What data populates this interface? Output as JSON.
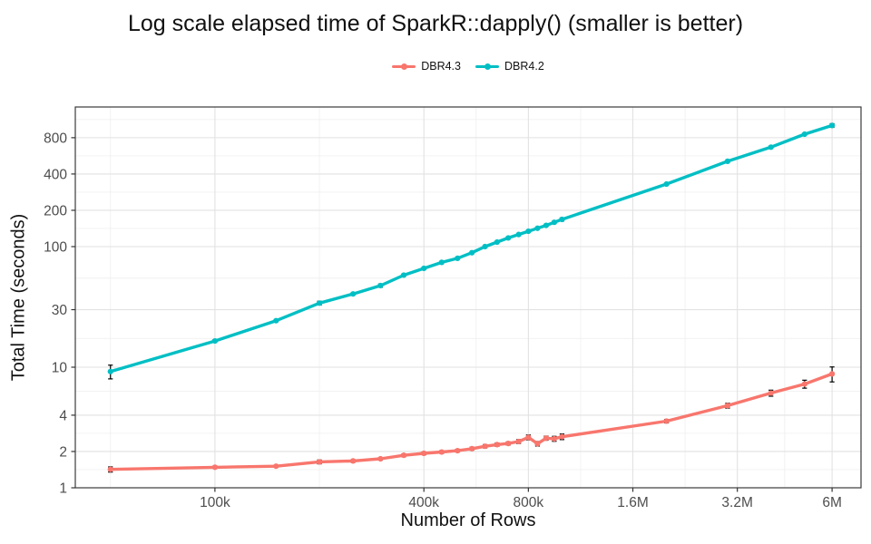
{
  "colors": {
    "series_dbr43": "#F8766D",
    "series_dbr42": "#00BFC4",
    "grid_major": "#E2E2E2",
    "grid_minor": "#F0F0F0",
    "panel_border": "#3B3B3B",
    "panel_background": "#FFFFFF",
    "tick_label": "#4D4D4D",
    "tick_mark": "#333333",
    "errorbar": "#000000"
  },
  "legend": [
    {
      "label": "DBR4.3",
      "color": "#F8766D"
    },
    {
      "label": "DBR4.2",
      "color": "#00BFC4"
    }
  ],
  "chart_data": {
    "type": "line",
    "title": "Log scale elapsed time of SparkR::dapply() (smaller is better)",
    "xlabel": "Number of Rows",
    "ylabel": "Total Time (seconds)",
    "x_scale": "log",
    "y_scale": "log",
    "grid": true,
    "legend_position": "top-center",
    "x": [
      50000,
      100000,
      150000,
      200000,
      250000,
      300000,
      350000,
      400000,
      450000,
      500000,
      550000,
      600000,
      650000,
      700000,
      750000,
      800000,
      850000,
      900000,
      950000,
      1000000,
      2000000,
      3000000,
      4000000,
      5000000,
      6000000
    ],
    "series": [
      {
        "name": "DBR4.3",
        "color": "#F8766D",
        "values": [
          1.42,
          1.48,
          1.51,
          1.64,
          1.67,
          1.74,
          1.86,
          1.93,
          1.98,
          2.03,
          2.11,
          2.21,
          2.28,
          2.33,
          2.42,
          2.62,
          2.32,
          2.58,
          2.55,
          2.65,
          3.57,
          4.8,
          6.1,
          7.25,
          8.8
        ],
        "errors": [
          0.07,
          0.03,
          0.03,
          0.06,
          0.04,
          0.04,
          0.05,
          0.05,
          0.05,
          0.05,
          0.06,
          0.07,
          0.07,
          0.07,
          0.09,
          0.12,
          0.1,
          0.1,
          0.12,
          0.14,
          0.12,
          0.22,
          0.35,
          0.55,
          1.25
        ]
      },
      {
        "name": "DBR4.2",
        "color": "#00BFC4",
        "values": [
          9.2,
          16.5,
          24.3,
          34,
          40.5,
          47.5,
          58,
          66,
          74,
          80,
          89,
          100,
          109,
          118,
          126,
          134,
          142,
          150,
          159,
          168,
          330,
          510,
          668,
          855,
          1010
        ],
        "errors": [
          1.2,
          0.4,
          0.5,
          1.2,
          0.8,
          1.5,
          1.2,
          1.2,
          1.3,
          1.4,
          1.5,
          1.8,
          1.8,
          2.0,
          2.2,
          2.5,
          2.6,
          2.8,
          3.5,
          5,
          6,
          9,
          12,
          15,
          35
        ]
      }
    ],
    "x_ticks": [
      {
        "value": 100000,
        "label": "100k"
      },
      {
        "value": 400000,
        "label": "400k"
      },
      {
        "value": 800000,
        "label": "800k"
      },
      {
        "value": 1600000,
        "label": "1.6M"
      },
      {
        "value": 3200000,
        "label": "3.2M"
      },
      {
        "value": 6000000,
        "label": "6M"
      }
    ],
    "y_ticks": [
      {
        "value": 1,
        "label": "1"
      },
      {
        "value": 2,
        "label": "2"
      },
      {
        "value": 4,
        "label": "4"
      },
      {
        "value": 10,
        "label": "10"
      },
      {
        "value": 30,
        "label": "30"
      },
      {
        "value": 100,
        "label": "100"
      },
      {
        "value": 200,
        "label": "200"
      },
      {
        "value": 400,
        "label": "400"
      },
      {
        "value": 800,
        "label": "800"
      }
    ],
    "x_minor": [
      50000,
      200000,
      565685,
      1131371,
      2262742,
      4381780
    ],
    "y_minor": [
      1.4142,
      2.8284,
      6.3246,
      17.3205,
      54.7723,
      141.42,
      282.84,
      565.69,
      1131.37
    ],
    "xlim": [
      39600,
      7270000
    ],
    "ylim": [
      1,
      1438
    ]
  }
}
